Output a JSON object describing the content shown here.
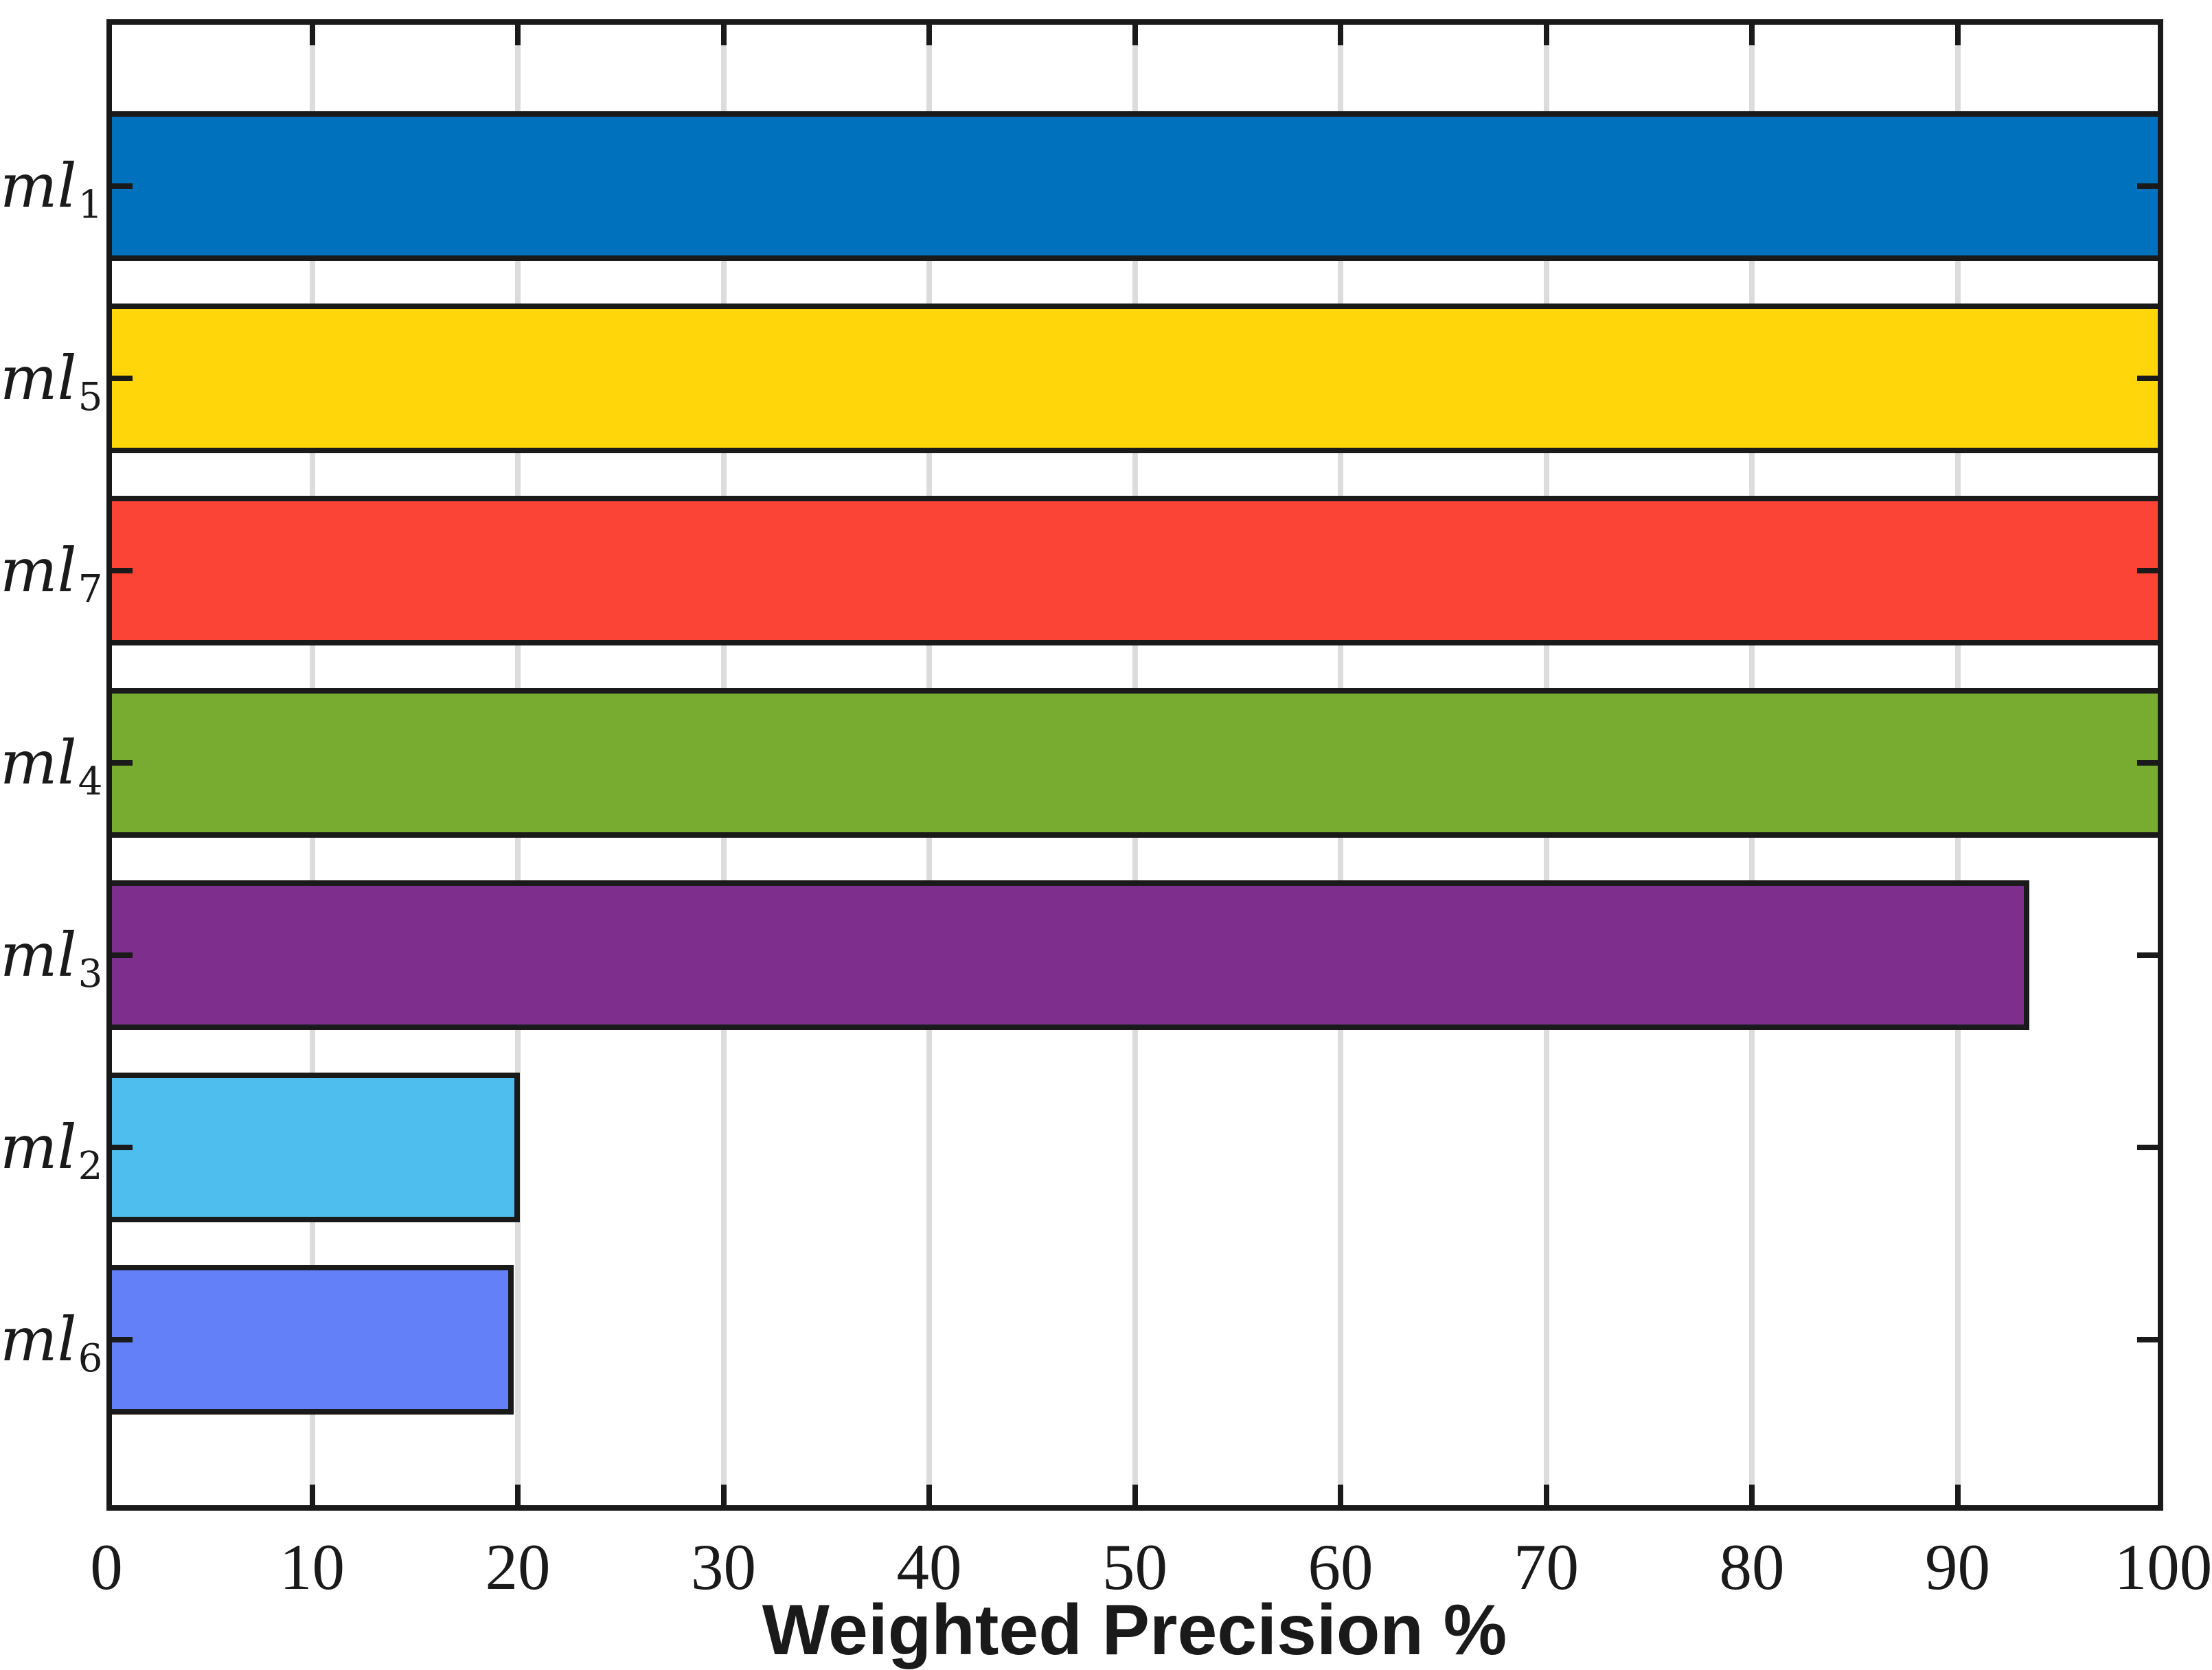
{
  "chart_data": {
    "type": "bar",
    "orientation": "horizontal",
    "title": "",
    "xlabel": "Weighted Precision %",
    "ylabel": "",
    "categories": [
      {
        "base": "ml",
        "sub": "1"
      },
      {
        "base": "ml",
        "sub": "5"
      },
      {
        "base": "ml",
        "sub": "7"
      },
      {
        "base": "ml",
        "sub": "4"
      },
      {
        "base": "ml",
        "sub": "3"
      },
      {
        "base": "ml",
        "sub": "2"
      },
      {
        "base": "ml",
        "sub": "6"
      }
    ],
    "values": [
      100,
      100,
      100,
      100,
      93.5,
      20.1,
      19.8
    ],
    "bar_colors": [
      "#0072BD",
      "#FFD60A",
      "#FB4336",
      "#77AC30",
      "#7E2F8E",
      "#4DBEEE",
      "#6480F8"
    ],
    "xlim": [
      0,
      100
    ],
    "xticks": [
      0,
      10,
      20,
      30,
      40,
      50,
      60,
      70,
      80,
      90,
      100
    ],
    "grid": "x",
    "grid_color": "#DCDCDC",
    "axis_color": "#1A1A1A",
    "background": "#FFFFFF",
    "legend": "none"
  }
}
